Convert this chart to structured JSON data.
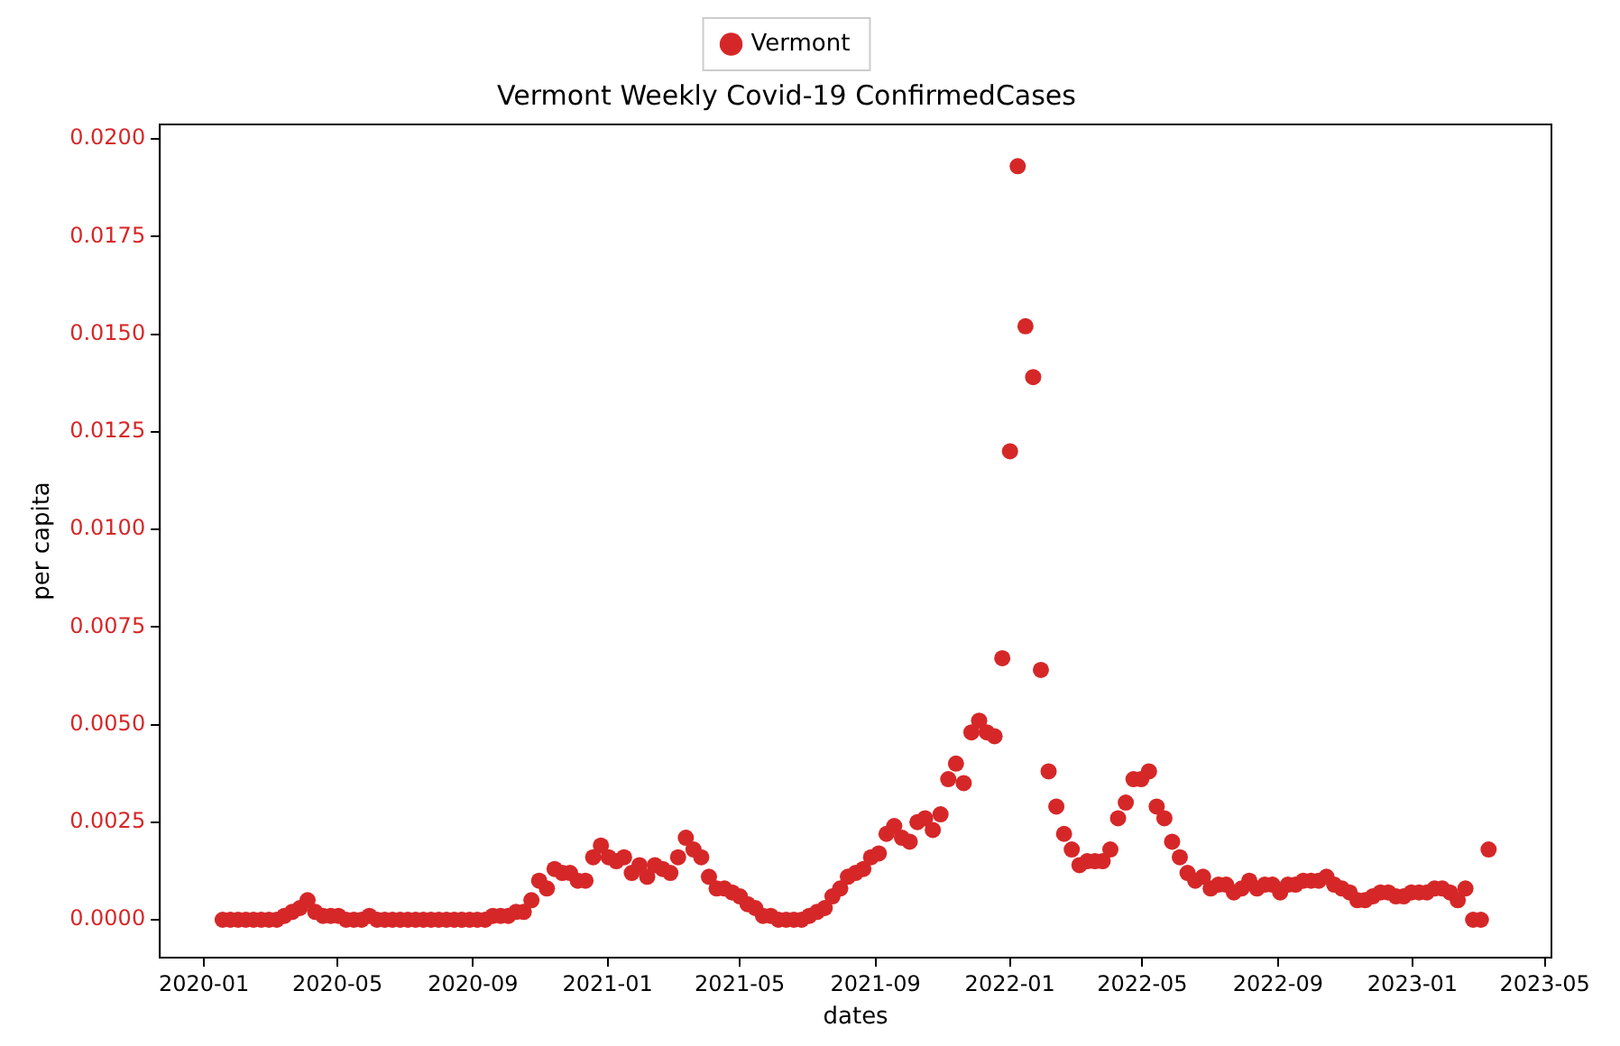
{
  "chart_data": {
    "type": "scatter",
    "title": "Vermont Weekly Covid-19 ConfirmedCases",
    "xlabel": "dates",
    "ylabel": "per capita",
    "x": [
      "2020-01-18",
      "2020-01-25",
      "2020-02-01",
      "2020-02-08",
      "2020-02-15",
      "2020-02-22",
      "2020-02-29",
      "2020-03-07",
      "2020-03-14",
      "2020-03-21",
      "2020-03-28",
      "2020-04-04",
      "2020-04-11",
      "2020-04-18",
      "2020-04-25",
      "2020-05-02",
      "2020-05-09",
      "2020-05-16",
      "2020-05-23",
      "2020-05-30",
      "2020-06-06",
      "2020-06-13",
      "2020-06-20",
      "2020-06-27",
      "2020-07-04",
      "2020-07-11",
      "2020-07-18",
      "2020-07-25",
      "2020-08-01",
      "2020-08-08",
      "2020-08-15",
      "2020-08-22",
      "2020-08-29",
      "2020-09-05",
      "2020-09-12",
      "2020-09-19",
      "2020-09-26",
      "2020-10-03",
      "2020-10-10",
      "2020-10-17",
      "2020-10-24",
      "2020-10-31",
      "2020-11-07",
      "2020-11-14",
      "2020-11-21",
      "2020-11-28",
      "2020-12-05",
      "2020-12-12",
      "2020-12-19",
      "2020-12-26",
      "2021-01-02",
      "2021-01-09",
      "2021-01-16",
      "2021-01-23",
      "2021-01-30",
      "2021-02-06",
      "2021-02-13",
      "2021-02-20",
      "2021-02-27",
      "2021-03-06",
      "2021-03-13",
      "2021-03-20",
      "2021-03-27",
      "2021-04-03",
      "2021-04-10",
      "2021-04-17",
      "2021-04-24",
      "2021-05-01",
      "2021-05-08",
      "2021-05-15",
      "2021-05-22",
      "2021-05-29",
      "2021-06-05",
      "2021-06-12",
      "2021-06-19",
      "2021-06-26",
      "2021-07-03",
      "2021-07-10",
      "2021-07-17",
      "2021-07-24",
      "2021-07-31",
      "2021-08-07",
      "2021-08-14",
      "2021-08-21",
      "2021-08-28",
      "2021-09-04",
      "2021-09-11",
      "2021-09-18",
      "2021-09-25",
      "2021-10-02",
      "2021-10-09",
      "2021-10-16",
      "2021-10-23",
      "2021-10-30",
      "2021-11-06",
      "2021-11-13",
      "2021-11-20",
      "2021-11-27",
      "2021-12-04",
      "2021-12-11",
      "2021-12-18",
      "2021-12-25",
      "2022-01-01",
      "2022-01-08",
      "2022-01-15",
      "2022-01-22",
      "2022-01-29",
      "2022-02-05",
      "2022-02-12",
      "2022-02-19",
      "2022-02-26",
      "2022-03-05",
      "2022-03-12",
      "2022-03-19",
      "2022-03-26",
      "2022-04-02",
      "2022-04-09",
      "2022-04-16",
      "2022-04-23",
      "2022-04-30",
      "2022-05-07",
      "2022-05-14",
      "2022-05-21",
      "2022-05-28",
      "2022-06-04",
      "2022-06-11",
      "2022-06-18",
      "2022-06-25",
      "2022-07-02",
      "2022-07-09",
      "2022-07-16",
      "2022-07-23",
      "2022-07-30",
      "2022-08-06",
      "2022-08-13",
      "2022-08-20",
      "2022-08-27",
      "2022-09-03",
      "2022-09-10",
      "2022-09-17",
      "2022-09-24",
      "2022-10-01",
      "2022-10-08",
      "2022-10-15",
      "2022-10-22",
      "2022-10-29",
      "2022-11-05",
      "2022-11-12",
      "2022-11-19",
      "2022-11-26",
      "2022-12-03",
      "2022-12-10",
      "2022-12-17",
      "2022-12-24",
      "2022-12-31",
      "2023-01-07",
      "2023-01-14",
      "2023-01-21",
      "2023-01-28",
      "2023-02-04",
      "2023-02-11",
      "2023-02-18",
      "2023-02-25",
      "2023-03-04",
      "2023-03-11"
    ],
    "series": [
      {
        "name": "Vermont",
        "color": "#d62728",
        "values": [
          0,
          0,
          0,
          0,
          0,
          0,
          0,
          0,
          0.0001,
          0.0002,
          0.0003,
          0.0005,
          0.0002,
          0.0001,
          0.0001,
          0.0001,
          0,
          0,
          0,
          0.0001,
          0,
          0,
          0,
          0,
          0,
          0,
          0,
          0,
          0,
          0,
          0,
          0,
          0,
          0,
          0,
          0.0001,
          0.0001,
          0.0001,
          0.0002,
          0.0002,
          0.0005,
          0.001,
          0.0008,
          0.0013,
          0.0012,
          0.0012,
          0.001,
          0.001,
          0.0016,
          0.0019,
          0.0016,
          0.0015,
          0.0016,
          0.0012,
          0.0014,
          0.0011,
          0.0014,
          0.0013,
          0.0012,
          0.0016,
          0.0021,
          0.0018,
          0.0016,
          0.0011,
          0.0008,
          0.0008,
          0.0007,
          0.0006,
          0.0004,
          0.0003,
          0.0001,
          0.0001,
          0,
          0,
          0,
          0,
          0.0001,
          0.0002,
          0.0003,
          0.0006,
          0.0008,
          0.0011,
          0.0012,
          0.0013,
          0.0016,
          0.0017,
          0.0022,
          0.0024,
          0.0021,
          0.002,
          0.0025,
          0.0026,
          0.0023,
          0.0027,
          0.0036,
          0.004,
          0.0035,
          0.0048,
          0.0051,
          0.0048,
          0.0047,
          0.0067,
          0.012,
          0.0193,
          0.0152,
          0.0139,
          0.0064,
          0.0038,
          0.0029,
          0.0022,
          0.0018,
          0.0014,
          0.0015,
          0.0015,
          0.0015,
          0.0018,
          0.0026,
          0.003,
          0.0036,
          0.0036,
          0.0038,
          0.0029,
          0.0026,
          0.002,
          0.0016,
          0.0012,
          0.001,
          0.0011,
          0.0008,
          0.0009,
          0.0009,
          0.0007,
          0.0008,
          0.001,
          0.0008,
          0.0009,
          0.0009,
          0.0007,
          0.0009,
          0.0009,
          0.001,
          0.001,
          0.001,
          0.0011,
          0.0009,
          0.0008,
          0.0007,
          0.0005,
          0.0005,
          0.0006,
          0.0007,
          0.0007,
          0.0006,
          0.0006,
          0.0007,
          0.0007,
          0.0007,
          0.0008,
          0.0008,
          0.0007,
          0.0005,
          0.0008,
          0,
          0,
          0.0018
        ]
      }
    ],
    "xlim": [
      "2019-11-22",
      "2023-05-07"
    ],
    "xticks": [
      "2020-01",
      "2020-05",
      "2020-09",
      "2021-01",
      "2021-05",
      "2021-09",
      "2022-01",
      "2022-05",
      "2022-09",
      "2023-01",
      "2023-05"
    ],
    "ylim": [
      -0.00097,
      0.02037
    ],
    "yticks": [
      {
        "value": 0,
        "label": "0.0000"
      },
      {
        "value": 0.0025,
        "label": "0.0025"
      },
      {
        "value": 0.005,
        "label": "0.0050"
      },
      {
        "value": 0.0075,
        "label": "0.0075"
      },
      {
        "value": 0.01,
        "label": "0.0100"
      },
      {
        "value": 0.0125,
        "label": "0.0125"
      },
      {
        "value": 0.015,
        "label": "0.0150"
      },
      {
        "value": 0.0175,
        "label": "0.0175"
      },
      {
        "value": 0.02,
        "label": "0.0200"
      }
    ],
    "grid": false,
    "legend": "top",
    "marker": "circle"
  }
}
